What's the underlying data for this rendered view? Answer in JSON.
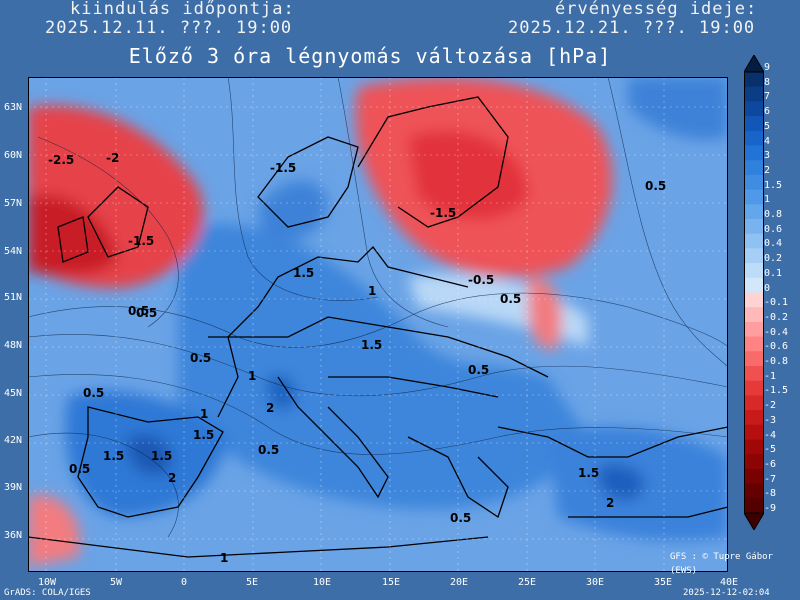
{
  "header": {
    "start_label": "kiindulás időpontja:",
    "start_value": "2025.12.11. ???. 19:00",
    "valid_label": "érvényesség ideje:",
    "valid_value": "2025.12.21. ???. 19:00"
  },
  "title": "Előző 3 óra légnyomás változása [hPa]",
  "axes": {
    "lat_labels": [
      "63N",
      "60N",
      "57N",
      "54N",
      "51N",
      "48N",
      "45N",
      "42N",
      "39N",
      "36N"
    ],
    "lon_labels": [
      "10W",
      "5W",
      "0",
      "5E",
      "10E",
      "15E",
      "20E",
      "25E",
      "30E",
      "35E",
      "40E"
    ]
  },
  "colorbar": {
    "levels": [
      "9",
      "8",
      "7",
      "6",
      "5",
      "4",
      "3",
      "2",
      "1.5",
      "1",
      "0.8",
      "0.6",
      "0.4",
      "0.2",
      "0.1",
      "0",
      "-0.1",
      "-0.2",
      "-0.4",
      "-0.6",
      "-0.8",
      "-1",
      "-1.5",
      "-2",
      "-3",
      "-4",
      "-5",
      "-6",
      "-7",
      "-8",
      "-9"
    ],
    "colors_blue": [
      "#08306b",
      "#0b3c86",
      "#0d489f",
      "#1256b8",
      "#1864c8",
      "#2273d6",
      "#3080dd",
      "#3f8de3",
      "#4f99e8",
      "#62a6ec",
      "#78b3ef",
      "#8fc1f2",
      "#a6cff5",
      "#bddcf8",
      "#d3e7fa"
    ],
    "colors_red": [
      "#ffd3d3",
      "#ffb9b9",
      "#ff9e9e",
      "#ff8383",
      "#f96a6a",
      "#f05050",
      "#e63a3a",
      "#d92828",
      "#c81a1a",
      "#b50f0f",
      "#a00808",
      "#8c0404",
      "#780202",
      "#650000",
      "#520000"
    ]
  },
  "map_labels": [
    {
      "text": "-2.5"
    },
    {
      "text": "-2"
    },
    {
      "text": "-1.5"
    },
    {
      "text": "-1.5"
    },
    {
      "text": "-1.5"
    },
    {
      "text": "1.5"
    },
    {
      "text": "1"
    },
    {
      "text": "0.5"
    },
    {
      "text": "0.5"
    },
    {
      "text": "0.5"
    },
    {
      "text": "1.5"
    },
    {
      "text": "1"
    },
    {
      "text": "2"
    },
    {
      "text": "1"
    },
    {
      "text": "1.5"
    },
    {
      "text": "1.5"
    },
    {
      "text": "1.5"
    },
    {
      "text": "2"
    },
    {
      "text": "0.5"
    },
    {
      "text": "0.5"
    },
    {
      "text": "0.5"
    },
    {
      "text": "-0.5"
    },
    {
      "text": "0.5"
    },
    {
      "text": "1.5"
    },
    {
      "text": "2"
    },
    {
      "text": "0.5"
    },
    {
      "text": "1"
    },
    {
      "text": "0.5"
    },
    {
      "text": "0.5"
    }
  ],
  "footer": {
    "left": "GrADS: COLA/IGES",
    "right": "2025-12-12-02:04",
    "credit": "GFS : © Tupre Gábor (EWS)"
  }
}
